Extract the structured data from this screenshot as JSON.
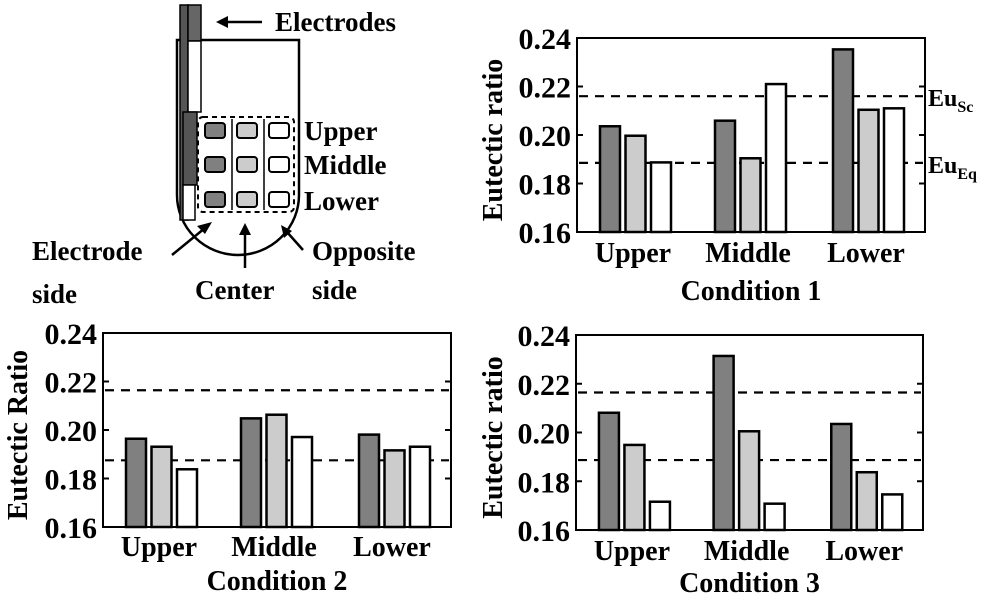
{
  "diagram": {
    "electrodes_label": "Electrodes",
    "row_labels": [
      "Upper",
      "Middle",
      "Lower"
    ],
    "electrode_side_label": [
      "Electrode",
      "side"
    ],
    "center_label": "Center",
    "opposite_side_label": [
      "Opposite",
      "side"
    ],
    "colors": {
      "electrode_side": "#808080",
      "center": "#cccccc",
      "opposite_side": "#ffffff"
    }
  },
  "chart_data": [
    {
      "type": "bar",
      "title": "Condition 1",
      "xlabel": "Condition 1",
      "ylabel": "Eutectic ratio",
      "categories": [
        "Upper",
        "Middle",
        "Lower"
      ],
      "series": [
        {
          "name": "Electrode side",
          "color": "#808080",
          "values": [
            0.2036,
            0.2059,
            0.2353
          ]
        },
        {
          "name": "Center",
          "color": "#cccccc",
          "values": [
            0.1997,
            0.1904,
            0.2104
          ]
        },
        {
          "name": "Opposite side",
          "color": "#ffffff",
          "values": [
            0.1887,
            0.221,
            0.211
          ]
        }
      ],
      "ylim": [
        0.16,
        0.24
      ],
      "yticks": [
        "0.16",
        "0.18",
        "0.20",
        "0.22",
        "0.24"
      ],
      "reference_lines": [
        {
          "value": 0.216,
          "label": "Eu",
          "sub": "Sc"
        },
        {
          "value": 0.1885,
          "label": "Eu",
          "sub": "Eq"
        }
      ]
    },
    {
      "type": "bar",
      "title": "Condition 2",
      "xlabel": "Condition 2",
      "ylabel": "Eutectic Ratio",
      "categories": [
        "Upper",
        "Middle",
        "Lower"
      ],
      "series": [
        {
          "name": "Electrode side",
          "color": "#808080",
          "values": [
            0.1964,
            0.2048,
            0.1981
          ]
        },
        {
          "name": "Center",
          "color": "#cccccc",
          "values": [
            0.1931,
            0.2063,
            0.1916
          ]
        },
        {
          "name": "Opposite side",
          "color": "#ffffff",
          "values": [
            0.1838,
            0.1971,
            0.1931
          ]
        }
      ],
      "ylim": [
        0.16,
        0.24
      ],
      "yticks": [
        "0.16",
        "0.18",
        "0.20",
        "0.22",
        "0.24"
      ],
      "reference_lines": [
        {
          "value": 0.2164
        },
        {
          "value": 0.1875
        }
      ]
    },
    {
      "type": "bar",
      "title": "Condition 3",
      "xlabel": "Condition 3",
      "ylabel": "Eutectic ratio",
      "categories": [
        "Upper",
        "Middle",
        "Lower"
      ],
      "series": [
        {
          "name": "Electrode side",
          "color": "#808080",
          "values": [
            0.2081,
            0.2314,
            0.2035
          ]
        },
        {
          "name": "Center",
          "color": "#cccccc",
          "values": [
            0.1949,
            0.2005,
            0.1837
          ]
        },
        {
          "name": "Opposite side",
          "color": "#ffffff",
          "values": [
            0.1716,
            0.1708,
            0.1746
          ]
        }
      ],
      "ylim": [
        0.16,
        0.24
      ],
      "yticks": [
        "0.16",
        "0.18",
        "0.20",
        "0.22",
        "0.24"
      ],
      "reference_lines": [
        {
          "value": 0.2164
        },
        {
          "value": 0.1887
        }
      ]
    }
  ]
}
